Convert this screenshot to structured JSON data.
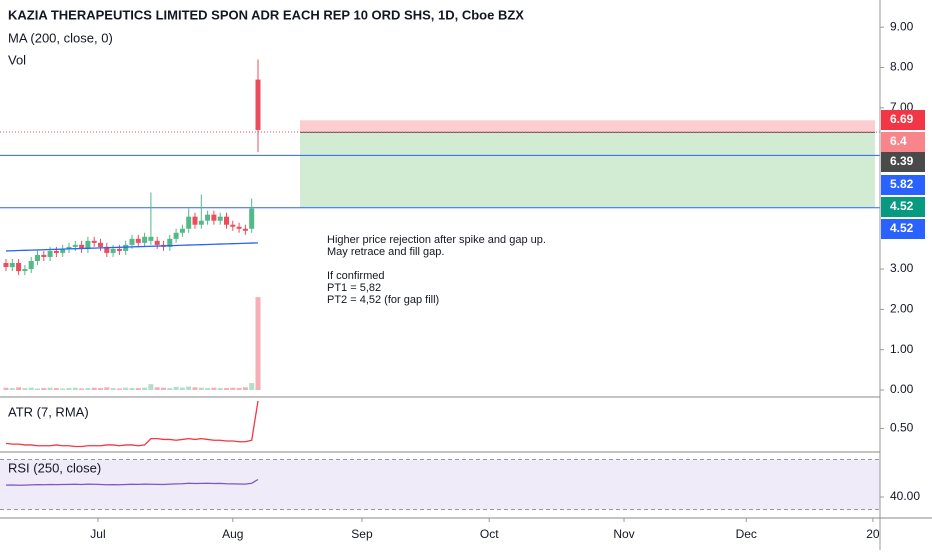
{
  "chart_data": {
    "type": "candlestick",
    "title": "KAZIA THERAPEUTICS LIMITED SPON ADR EACH REP 10 ORD SHS, 1D, Cboe BZX",
    "legend_labels": [
      "MA (200, close, 0)",
      "Vol"
    ],
    "open": [
      3.15,
      3.05,
      3.15,
      2.95,
      3.0,
      3.2,
      3.35,
      3.3,
      3.45,
      3.4,
      3.5,
      3.55,
      3.6,
      3.5,
      3.7,
      3.65,
      3.55,
      3.4,
      3.5,
      3.45,
      3.6,
      3.75,
      3.65,
      3.7,
      3.7,
      3.6,
      3.55,
      3.75,
      3.9,
      4.0,
      4.3,
      4.1,
      4.2,
      4.35,
      4.2,
      4.3,
      4.1,
      4.05,
      4.0,
      4.0,
      7.7
    ],
    "high": [
      3.25,
      3.25,
      3.25,
      3.1,
      3.3,
      3.45,
      3.45,
      3.55,
      3.55,
      3.6,
      3.65,
      3.7,
      3.7,
      3.8,
      3.8,
      3.75,
      3.65,
      3.6,
      3.6,
      3.7,
      3.85,
      3.85,
      3.9,
      4.9,
      3.8,
      3.7,
      3.85,
      4.0,
      4.1,
      4.5,
      4.4,
      4.85,
      4.45,
      4.45,
      4.4,
      4.4,
      4.2,
      4.15,
      4.1,
      4.75,
      8.2
    ],
    "low": [
      2.95,
      2.95,
      2.85,
      2.85,
      2.9,
      3.1,
      3.2,
      3.2,
      3.3,
      3.3,
      3.4,
      3.45,
      3.4,
      3.4,
      3.55,
      3.45,
      3.3,
      3.3,
      3.35,
      3.35,
      3.5,
      3.55,
      3.55,
      3.6,
      3.5,
      3.45,
      3.45,
      3.65,
      3.8,
      3.9,
      4.0,
      4.0,
      4.1,
      4.1,
      4.1,
      4.0,
      3.95,
      3.9,
      3.85,
      3.9,
      5.9
    ],
    "close": [
      3.05,
      3.15,
      2.95,
      3.0,
      3.2,
      3.35,
      3.3,
      3.45,
      3.4,
      3.5,
      3.55,
      3.6,
      3.5,
      3.7,
      3.65,
      3.55,
      3.4,
      3.5,
      3.45,
      3.6,
      3.75,
      3.65,
      3.8,
      3.8,
      3.6,
      3.55,
      3.75,
      3.9,
      4.0,
      4.3,
      4.1,
      4.2,
      4.35,
      4.2,
      4.3,
      4.1,
      4.05,
      4.0,
      3.95,
      4.5,
      6.45
    ],
    "ma": [
      3.45,
      3.455,
      3.46,
      3.465,
      3.47,
      3.475,
      3.48,
      3.485,
      3.49,
      3.495,
      3.5,
      3.505,
      3.51,
      3.515,
      3.52,
      3.525,
      3.53,
      3.535,
      3.54,
      3.545,
      3.55,
      3.555,
      3.56,
      3.565,
      3.57,
      3.575,
      3.58,
      3.585,
      3.59,
      3.595,
      3.6,
      3.605,
      3.61,
      3.615,
      3.62,
      3.625,
      3.63,
      3.635,
      3.64,
      3.645,
      3.65
    ],
    "volume": [
      6,
      5,
      7,
      5,
      6,
      4,
      5,
      6,
      5,
      4,
      5,
      6,
      4,
      5,
      6,
      5,
      7,
      5,
      4,
      6,
      5,
      5,
      6,
      15,
      7,
      6,
      5,
      8,
      6,
      9,
      7,
      6,
      5,
      6,
      5,
      5,
      6,
      5,
      7,
      18,
      240
    ],
    "volume_lim": [
      0,
      1000
    ],
    "up_color": "#53b987",
    "down_color": "#eb4d5c",
    "ma_color": "#2962ff",
    "ylim": [
      0,
      9.6
    ],
    "yticks": [
      {
        "value": 0,
        "label": "0.00"
      },
      {
        "value": 1,
        "label": "1.00"
      },
      {
        "value": 2,
        "label": "2.00"
      },
      {
        "value": 3,
        "label": "3.00"
      },
      {
        "value": 7,
        "label": "7.00"
      },
      {
        "value": 8,
        "label": "8.00"
      },
      {
        "value": 9,
        "label": "9.00"
      }
    ],
    "xticks": [
      {
        "value": 14.6,
        "label": "Jul"
      },
      {
        "value": 36,
        "label": "Aug"
      },
      {
        "value": 56.5,
        "label": "Sep"
      },
      {
        "value": 76.7,
        "label": "Oct"
      },
      {
        "value": 98.1,
        "label": "Nov"
      },
      {
        "value": 117.5,
        "label": "Dec"
      },
      {
        "value": 137.6,
        "label": "20"
      }
    ],
    "levels": [
      {
        "value": 5.82,
        "color": "#2962ff"
      },
      {
        "value": 4.52,
        "color": "#2962ff"
      }
    ],
    "last_price": {
      "value": 6.4,
      "color": "#f7a9a7"
    },
    "position": {
      "stop": 6.69,
      "entry": 6.39,
      "target": 4.52
    },
    "price_labels": [
      {
        "value": 6.69,
        "color": "#f23645"
      },
      {
        "value": 6.4,
        "color": "#f7858a"
      },
      {
        "value": 6.39,
        "color": "#4a4a4a"
      },
      {
        "value": 5.82,
        "color": "#2962ff"
      },
      {
        "value": 4.52,
        "color": "#089981"
      },
      {
        "value": 4.52,
        "color": "#2962ff"
      }
    ],
    "annotation": [
      "Higher price rejection after spike and gap up.",
      "May retrace and fill gap.",
      "If confirmed",
      "PT1 = 5,82",
      "PT2 = 4,52 (for gap fill)"
    ],
    "atr": {
      "label": "ATR (7, RMA)",
      "color": "#f23645",
      "ylim": [
        0.2,
        0.9
      ],
      "yticks": [
        {
          "value": 0.5,
          "label": "0.50"
        }
      ],
      "values": [
        0.31,
        0.3,
        0.3,
        0.29,
        0.29,
        0.28,
        0.28,
        0.28,
        0.29,
        0.28,
        0.28,
        0.27,
        0.27,
        0.28,
        0.28,
        0.28,
        0.29,
        0.29,
        0.28,
        0.29,
        0.29,
        0.28,
        0.29,
        0.37,
        0.37,
        0.36,
        0.36,
        0.35,
        0.36,
        0.37,
        0.36,
        0.37,
        0.36,
        0.35,
        0.35,
        0.34,
        0.34,
        0.33,
        0.33,
        0.35,
        0.85
      ]
    },
    "rsi": {
      "label": "RSI (250, close)",
      "color": "#7e57c2",
      "ylim": [
        24,
        76
      ],
      "yticks": [
        {
          "value": 40,
          "label": "40.00"
        }
      ],
      "levels": [
        30,
        70
      ],
      "values": [
        49.5,
        49.6,
        49.4,
        49.5,
        49.7,
        49.9,
        49.8,
        50,
        49.9,
        50,
        50.1,
        50.2,
        50,
        50.3,
        50.2,
        50,
        49.8,
        49.9,
        49.8,
        50,
        50.2,
        50.1,
        50.3,
        50.2,
        50.1,
        50,
        50.3,
        50.5,
        50.6,
        51,
        50.8,
        50.9,
        51,
        50.8,
        50.9,
        50.6,
        50.5,
        50.4,
        50.3,
        51,
        54
      ]
    }
  }
}
